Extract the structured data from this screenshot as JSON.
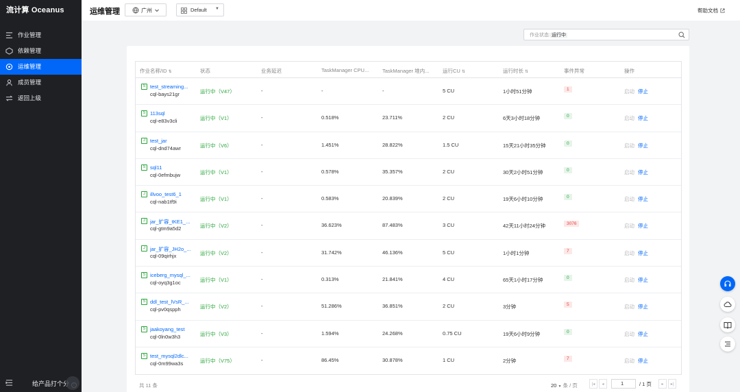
{
  "brand": "流计算 Oceanus",
  "nav": [
    {
      "label": "作业管理",
      "icon": "job-icon"
    },
    {
      "label": "依赖管理",
      "icon": "dependency-icon"
    },
    {
      "label": "运维管理",
      "icon": "ops-icon",
      "active": true
    },
    {
      "label": "成员管理",
      "icon": "member-icon"
    },
    {
      "label": "返回上级",
      "icon": "back-icon"
    }
  ],
  "footer": {
    "feedback": "给产品打个分"
  },
  "header": {
    "title": "运维管理",
    "region": "广州",
    "workspace": "Default",
    "help": "帮助文档"
  },
  "search": {
    "tag_key": "作业状态:",
    "tag_value": "运行中"
  },
  "table": {
    "columns": [
      "作业名称/ID",
      "状态",
      "业务延迟",
      "TaskManager CPU...",
      "TaskManager 堆内...",
      "运行CU",
      "运行时长",
      "事件异常",
      "操作"
    ],
    "rows": [
      {
        "type": "S",
        "name": "test_streaming...",
        "id": "cql-bays21gr",
        "status": "运行中（V47）",
        "delay": "-",
        "cpu": "-",
        "heap": "-",
        "cu": "5 CU",
        "duration": "1小时51分钟",
        "events": "1",
        "start": "启动",
        "stop": "停止"
      },
      {
        "type": "S",
        "name": "113sql",
        "id": "cql-e83v3cli",
        "status": "运行中（V1）",
        "delay": "-",
        "cpu": "0.518%",
        "heap": "23.711%",
        "cu": "2 CU",
        "duration": "6天3小时18分钟",
        "events": "0",
        "start": "启动",
        "stop": "停止"
      },
      {
        "type": "J",
        "name": "test_jar",
        "id": "cql-dnd74awr",
        "status": "运行中（V6）",
        "delay": "-",
        "cpu": "1.451%",
        "heap": "28.822%",
        "cu": "1.5 CU",
        "duration": "15天21小时35分钟",
        "events": "0",
        "start": "启动",
        "stop": "停止"
      },
      {
        "type": "S",
        "name": "sql11",
        "id": "cql-0efmbujw",
        "status": "运行中（V1）",
        "delay": "-",
        "cpu": "0.578%",
        "heap": "35.357%",
        "cu": "2 CU",
        "duration": "30天2小时51分钟",
        "events": "0",
        "start": "启动",
        "stop": "停止"
      },
      {
        "type": "J",
        "name": "illvoo_test6_1",
        "id": "cql-nab1tf9i",
        "status": "运行中（V1）",
        "delay": "-",
        "cpu": "0.583%",
        "heap": "20.839%",
        "cu": "2 CU",
        "duration": "19天6小时10分钟",
        "events": "0",
        "start": "启动",
        "stop": "停止"
      },
      {
        "type": "J",
        "name": "jar_扩容_tKE1_...",
        "id": "cql-gtm9a5d2",
        "status": "运行中（V2）",
        "delay": "-",
        "cpu": "36.623%",
        "heap": "87.483%",
        "cu": "3 CU",
        "duration": "42天11小时24分钟",
        "events": "3076",
        "start": "启动",
        "stop": "停止"
      },
      {
        "type": "J",
        "name": "jar_扩容_JH2o_...",
        "id": "cql-09qirhjx",
        "status": "运行中（V2）",
        "delay": "-",
        "cpu": "31.742%",
        "heap": "46.136%",
        "cu": "5 CU",
        "duration": "1小时1分钟",
        "events": "7",
        "start": "启动",
        "stop": "停止"
      },
      {
        "type": "S",
        "name": "iceberg_mysql_...",
        "id": "cql-oyq3g1oc",
        "status": "运行中（V1）",
        "delay": "-",
        "cpu": "0.313%",
        "heap": "21.841%",
        "cu": "4 CU",
        "duration": "65天1小时17分钟",
        "events": "0",
        "start": "启动",
        "stop": "停止"
      },
      {
        "type": "S",
        "name": "ddl_test_lVsR_...",
        "id": "cql-pv0qspph",
        "status": "运行中（V2）",
        "delay": "-",
        "cpu": "51.286%",
        "heap": "36.851%",
        "cu": "2 CU",
        "duration": "3分钟",
        "events": "5",
        "start": "启动",
        "stop": "停止"
      },
      {
        "type": "S",
        "name": "jaakoyang_test",
        "id": "cql-0ln0w3h3",
        "status": "运行中（V3）",
        "delay": "-",
        "cpu": "1.594%",
        "heap": "24.268%",
        "cu": "0.75 CU",
        "duration": "19天6小时9分钟",
        "events": "0",
        "start": "启动",
        "stop": "停止"
      },
      {
        "type": "S",
        "name": "test_mysql2dlc...",
        "id": "cql-0m99wa3s",
        "status": "运行中（V75）",
        "delay": "-",
        "cpu": "86.45%",
        "heap": "30.878%",
        "cu": "1 CU",
        "duration": "2分钟",
        "events": "7",
        "start": "启动",
        "stop": "停止"
      }
    ]
  },
  "pagination": {
    "total": "共 11 条",
    "page_size": "20",
    "page_size_unit": "条 / 页",
    "current": "1",
    "pages": "/ 1 页"
  },
  "colors": {
    "primary": "#0067f9",
    "success": "#29a53a",
    "danger": "#e54545",
    "sidebar": "#1f2024"
  }
}
